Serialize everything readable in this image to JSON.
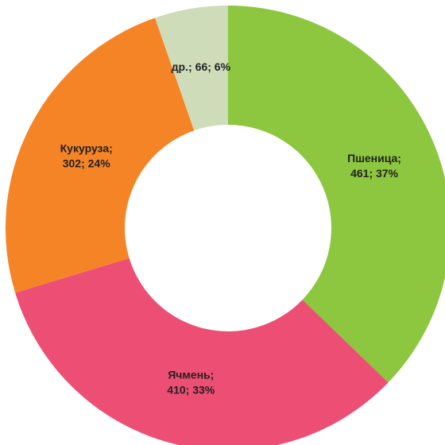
{
  "chart_data": {
    "type": "donut",
    "categories": [
      "Пшеница;",
      "Ячмень;",
      "Кукуруза;",
      "др.;"
    ],
    "values": [
      461,
      410,
      302,
      66
    ],
    "value_labels": [
      "461; 37%",
      "410; 33%",
      "302; 24%",
      "66; 6%"
    ],
    "colors": [
      "#8dc63f",
      "#ec4f73",
      "#f58426",
      "#cedcba"
    ]
  }
}
